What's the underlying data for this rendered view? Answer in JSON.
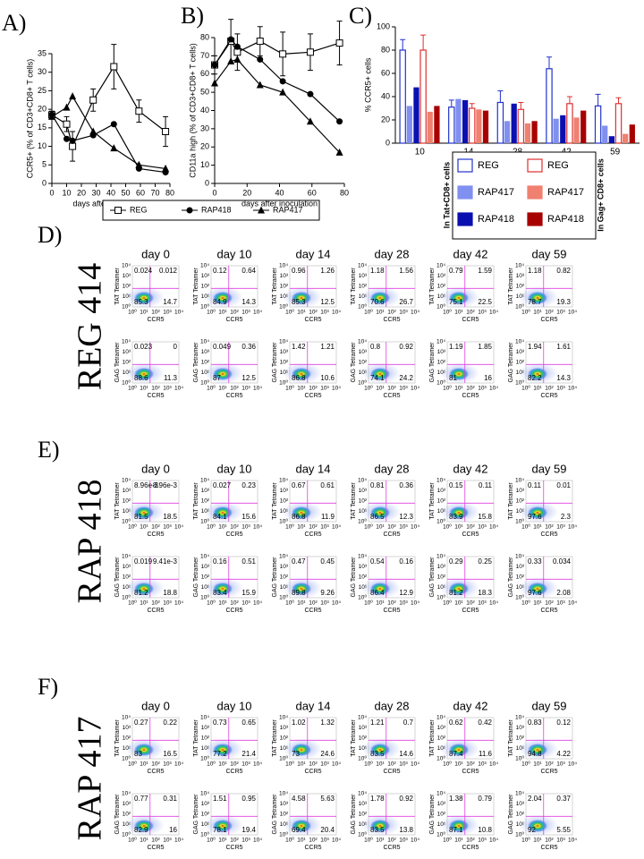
{
  "chart_data": [
    {
      "type": "line",
      "label": "A)",
      "ylabel": "CCR5+ (% of CD3+CD8+ T cells)",
      "xlabel": "days after inoculation",
      "x": [
        0,
        10,
        14,
        28,
        42,
        59,
        77
      ],
      "xlim": [
        0,
        80
      ],
      "xticks": [
        0,
        10,
        20,
        30,
        40,
        50,
        60,
        70,
        80
      ],
      "ylim": [
        0,
        35
      ],
      "yticks": [
        0,
        5,
        10,
        15,
        20,
        25,
        30,
        35
      ],
      "legend": "below",
      "grid": false,
      "series": [
        {
          "name": "REG",
          "marker": "square-open",
          "color": "#000000",
          "values": [
            18.5,
            16,
            10,
            22.5,
            31.5,
            19.5,
            14
          ],
          "errors": [
            1,
            2,
            4,
            3,
            6,
            3,
            4
          ]
        },
        {
          "name": "RAP418",
          "marker": "circle",
          "color": "#000000",
          "values": [
            18.5,
            12,
            11.5,
            13,
            16,
            4,
            3
          ],
          "errors": [
            null,
            null,
            null,
            null,
            null,
            null,
            null
          ]
        },
        {
          "name": "RAP417",
          "marker": "triangle",
          "color": "#000000",
          "values": [
            18,
            20.5,
            23.5,
            14,
            9.5,
            5,
            4
          ],
          "errors": [
            null,
            null,
            null,
            null,
            null,
            null,
            null
          ]
        }
      ]
    },
    {
      "type": "line",
      "label": "B)",
      "ylabel": "CD11a high (% of CD3+CD8+ T cells)",
      "xlabel": "days after inoculation",
      "x": [
        0,
        10,
        14,
        28,
        42,
        59,
        77
      ],
      "xlim": [
        0,
        80
      ],
      "xticks": [
        0,
        20,
        40,
        60,
        80
      ],
      "ylim": [
        0,
        80
      ],
      "yticks": [
        0,
        10,
        20,
        30,
        40,
        50,
        60,
        70,
        80
      ],
      "grid": false,
      "series": [
        {
          "marker": "square-open",
          "color": "#000000",
          "values": [
            65,
            78,
            72,
            78,
            71,
            72,
            77
          ],
          "errors": [
            5,
            12,
            10,
            8,
            12,
            10,
            12
          ]
        },
        {
          "marker": "circle",
          "color": "#000000",
          "values": [
            65,
            79,
            75,
            68,
            56,
            49,
            34
          ],
          "errors": [
            null,
            null,
            null,
            null,
            null,
            null,
            null
          ]
        },
        {
          "marker": "triangle",
          "color": "#000000",
          "values": [
            55,
            67,
            68,
            54,
            50,
            34,
            17
          ],
          "errors": [
            null,
            null,
            null,
            null,
            null,
            null,
            null
          ]
        }
      ]
    },
    {
      "type": "bar",
      "label": "C)",
      "ylabel": "% CCR5+ cells",
      "categories": [
        "10",
        "14",
        "28",
        "42",
        "59"
      ],
      "ylim": [
        0,
        100
      ],
      "yticks": [
        0,
        20,
        40,
        60,
        80,
        100
      ],
      "grid": false,
      "legend_groups": [
        "In Tat+CD8+ cells",
        "In Gag+ CD8+ cells"
      ],
      "series": [
        {
          "name": "REG",
          "group": 0,
          "fill": "open",
          "color": "#2233cc",
          "values": [
            80,
            31,
            35,
            64,
            32
          ],
          "errors": [
            9,
            6,
            10,
            10,
            10
          ]
        },
        {
          "name": "RAP417",
          "group": 0,
          "fill": "solid",
          "color": "#8090f0",
          "values": [
            32,
            38,
            19,
            21,
            15
          ],
          "errors": [
            null,
            null,
            null,
            null,
            null
          ]
        },
        {
          "name": "RAP418",
          "group": 0,
          "fill": "solid",
          "color": "#0a10b0",
          "values": [
            48,
            37,
            34,
            24,
            6
          ],
          "errors": [
            null,
            null,
            null,
            null,
            null
          ]
        },
        {
          "name": "REG",
          "group": 1,
          "fill": "open",
          "color": "#e03030",
          "values": [
            80,
            30,
            29,
            34,
            34
          ],
          "errors": [
            13,
            4,
            6,
            6,
            5
          ]
        },
        {
          "name": "RAP417",
          "group": 1,
          "fill": "solid",
          "color": "#f08070",
          "values": [
            27,
            29,
            17,
            22,
            8
          ],
          "errors": [
            null,
            null,
            null,
            null,
            null
          ]
        },
        {
          "name": "RAP418",
          "group": 1,
          "fill": "solid",
          "color": "#a80000",
          "values": [
            32,
            28,
            19,
            28,
            16
          ],
          "errors": [
            null,
            null,
            null,
            null,
            null
          ]
        }
      ]
    }
  ],
  "flow": {
    "x_label": "CCR5",
    "tick_labels": [
      "10⁰",
      "10¹",
      "10²",
      "10³",
      "10⁴"
    ],
    "row_labels": [
      "TAT Tetramer",
      "GAG Tetramer"
    ],
    "sections": [
      {
        "letter": "D)",
        "name": "REG 414",
        "days": [
          "day 0",
          "day 10",
          "day 14",
          "day 28",
          "day 42",
          "day 59"
        ],
        "rows": [
          [
            [
              0.024,
              0.012,
              85.3,
              14.7
            ],
            [
              0.12,
              0.64,
              84.9,
              14.3
            ],
            [
              0.96,
              1.26,
              85.3,
              12.5
            ],
            [
              1.18,
              1.56,
              70.6,
              26.7
            ],
            [
              0.79,
              1.59,
              75.1,
              22.5
            ],
            [
              1.18,
              0.82,
              78.7,
              19.3
            ]
          ],
          [
            [
              0.023,
              0,
              88.6,
              11.3
            ],
            [
              0.049,
              0.36,
              87,
              12.5
            ],
            [
              1.42,
              1.21,
              86.8,
              10.6
            ],
            [
              0.8,
              0.92,
              74.1,
              24.2
            ],
            [
              1.19,
              1.85,
              81,
              16
            ],
            [
              1.94,
              1.61,
              82.2,
              14.3
            ]
          ]
        ]
      },
      {
        "letter": "E)",
        "name": "RAP 418",
        "days": [
          "day 0",
          "day 10",
          "day 14",
          "day 28",
          "day 42",
          "day 59"
        ],
        "rows": [
          [
            [
              "8.96e-3",
              "8.96e-3",
              81.5,
              18.5
            ],
            [
              0.027,
              0.23,
              84.1,
              15.6
            ],
            [
              0.67,
              0.61,
              86.8,
              11.9
            ],
            [
              0.81,
              0.36,
              86.5,
              12.3
            ],
            [
              0.15,
              0.11,
              83.9,
              15.8
            ],
            [
              0.11,
              0.01,
              97.6,
              2.3
            ]
          ],
          [
            [
              0.019,
              "9.41e-3",
              81.2,
              18.8
            ],
            [
              0.16,
              0.51,
              83.4,
              15.9
            ],
            [
              0.47,
              0.45,
              89.8,
              9.26
            ],
            [
              0.54,
              0.16,
              86.4,
              12.9
            ],
            [
              0.29,
              0.25,
              81.2,
              18.3
            ],
            [
              0.33,
              0.034,
              97.6,
              2.08
            ]
          ]
        ]
      },
      {
        "letter": "F)",
        "name": "RAP 417",
        "days": [
          "day 0",
          "day 10",
          "day 14",
          "day 28",
          "day 42",
          "day 59"
        ],
        "rows": [
          [
            [
              0.27,
              0.22,
              83,
              16.5
            ],
            [
              0.73,
              0.65,
              77.2,
              21.4
            ],
            [
              1.02,
              1.32,
              73,
              24.6
            ],
            [
              1.21,
              0.7,
              83.5,
              14.6
            ],
            [
              0.62,
              0.42,
              87.4,
              11.6
            ],
            [
              0.83,
              0.12,
              94.8,
              4.22
            ]
          ],
          [
            [
              0.77,
              0.31,
              82.9,
              16
            ],
            [
              1.51,
              0.95,
              78.1,
              19.4
            ],
            [
              4.58,
              5.63,
              69.4,
              20.4
            ],
            [
              1.78,
              0.92,
              83.5,
              13.8
            ],
            [
              1.38,
              0.79,
              87.1,
              10.8
            ],
            [
              2.04,
              0.37,
              92,
              5.55
            ]
          ]
        ]
      }
    ]
  }
}
